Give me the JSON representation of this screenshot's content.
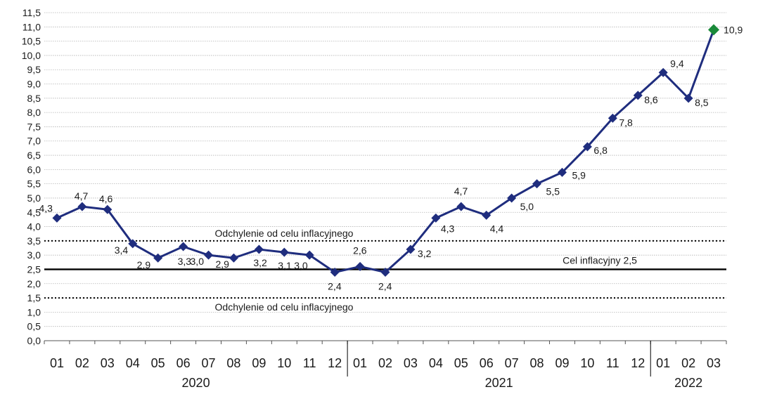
{
  "chart_data": {
    "type": "line",
    "title": "",
    "xlabel": "",
    "ylabel": "",
    "ylim": [
      0,
      11.5
    ],
    "ytick_step": 0.5,
    "grid": true,
    "categories": [
      "01",
      "02",
      "03",
      "04",
      "05",
      "06",
      "07",
      "08",
      "09",
      "10",
      "11",
      "12",
      "01",
      "02",
      "03",
      "04",
      "05",
      "06",
      "07",
      "08",
      "09",
      "10",
      "11",
      "12",
      "01",
      "02",
      "03"
    ],
    "year_groups": [
      {
        "label": "2020",
        "start": 0,
        "end": 11
      },
      {
        "label": "2021",
        "start": 12,
        "end": 23
      },
      {
        "label": "2022",
        "start": 24,
        "end": 26
      }
    ],
    "series": [
      {
        "values": [
          4.3,
          4.7,
          4.6,
          3.4,
          2.9,
          3.3,
          3.0,
          2.9,
          3.2,
          3.1,
          3.0,
          2.4,
          2.6,
          2.4,
          3.2,
          4.3,
          4.7,
          4.4,
          5.0,
          5.5,
          5.9,
          6.8,
          7.8,
          8.6,
          9.4,
          8.5,
          10.9
        ],
        "data_labels": [
          "4,3",
          "4,7",
          "4,6",
          "3,4",
          "2,9",
          "3,3",
          "3,0",
          "2,9",
          "3,2",
          "3,1",
          "3,0",
          "2,4",
          "2,6",
          "2,4",
          "3,2",
          "4,3",
          "4,7",
          "4,4",
          "5,0",
          "5,5",
          "5,9",
          "6,8",
          "7,8",
          "8,6",
          "9,4",
          "8,5",
          "10,9"
        ],
        "color": "#1f2d7e",
        "highlight_color": "#1a8a3a",
        "highlight_index": 26
      }
    ],
    "reference_lines": [
      {
        "value": 3.5,
        "style": "dotted",
        "label": "Odchylenie od celu inflacyjnego"
      },
      {
        "value": 2.5,
        "style": "solid",
        "label": "Cel inflacyjny 2,5"
      },
      {
        "value": 1.5,
        "style": "dotted",
        "label": "Odchylenie od celu inflacyjnego"
      }
    ]
  }
}
